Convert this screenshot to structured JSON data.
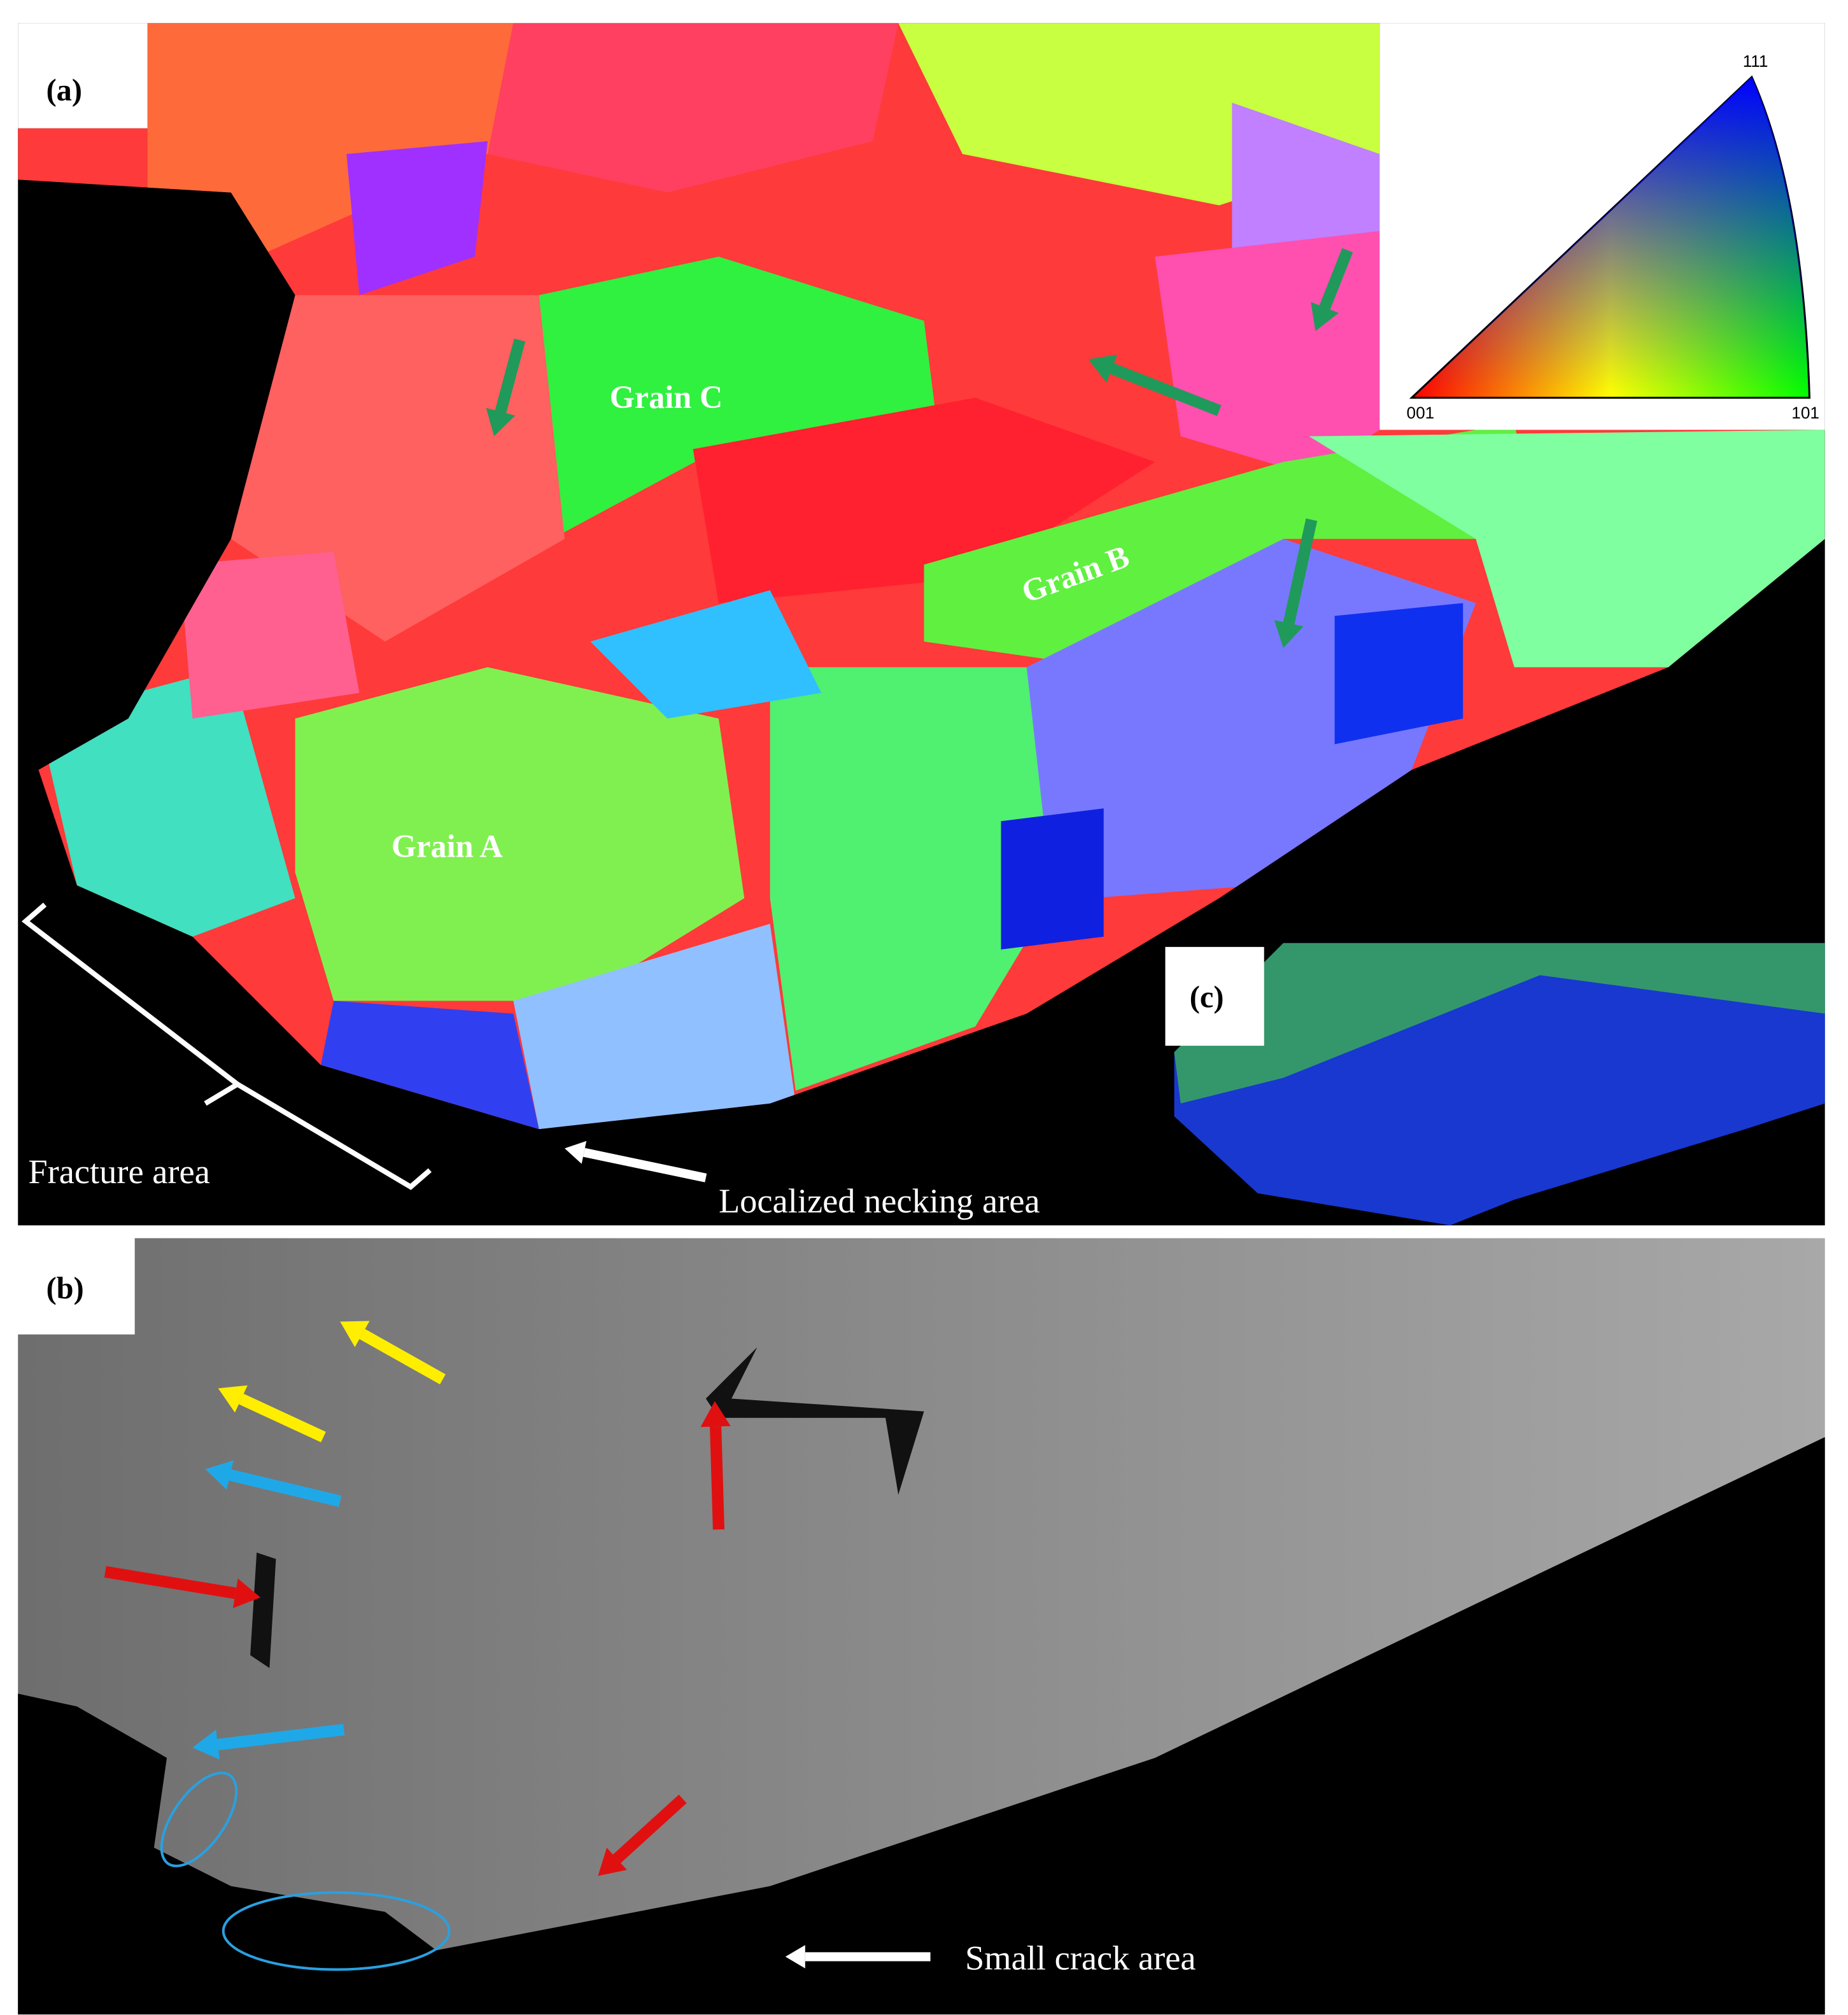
{
  "panels": {
    "a": {
      "label": "(a)",
      "grains": [
        "Grain C",
        "Grain B",
        "Grain A"
      ],
      "annotations": [
        "Fracture area",
        "Localized necking area"
      ],
      "legend": {
        "corners": [
          "111",
          "001",
          "101"
        ]
      }
    },
    "b": {
      "label": "(b)",
      "annotations": [
        "Small crack area"
      ]
    },
    "c": {
      "label": "(c)"
    }
  }
}
